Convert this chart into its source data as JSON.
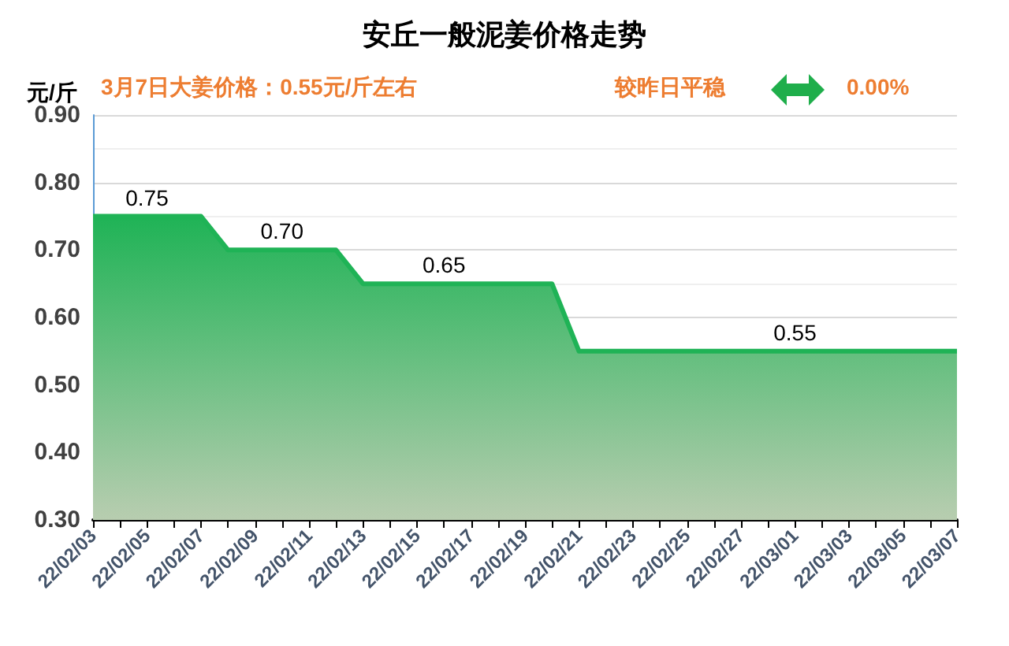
{
  "chart_data": {
    "type": "area",
    "title": "安丘一般泥姜价格走势",
    "ylabel": "元/斤",
    "annotations": [
      "3月7日大姜价格：0.55元/斤左右",
      "较昨日平稳",
      "0.00%"
    ],
    "categories": [
      "22/02/03",
      null,
      "22/02/05",
      null,
      "22/02/07",
      null,
      "22/02/09",
      null,
      "22/02/11",
      null,
      "22/02/13",
      null,
      "22/02/15",
      null,
      "22/02/17",
      null,
      "22/02/19",
      null,
      "22/02/21",
      null,
      "22/02/23",
      null,
      "22/02/25",
      null,
      "22/02/27",
      null,
      "22/03/01",
      null,
      "22/03/03",
      null,
      "22/03/05",
      null,
      "22/03/07"
    ],
    "series": [
      {
        "color": "#1fb356",
        "values": [
          0.75,
          0.75,
          0.75,
          0.75,
          0.75,
          0.7,
          0.7,
          0.7,
          0.7,
          0.7,
          0.65,
          0.65,
          0.65,
          0.65,
          0.65,
          0.65,
          0.65,
          0.65,
          0.55,
          0.55,
          0.55,
          0.55,
          0.55,
          0.55,
          0.55,
          0.55,
          0.55,
          0.55,
          0.55,
          0.55,
          0.55,
          0.55,
          0.55
        ],
        "value_labels": [
          null,
          null,
          "0.75",
          null,
          null,
          null,
          null,
          "0.70",
          null,
          null,
          null,
          null,
          null,
          "0.65",
          null,
          null,
          null,
          null,
          null,
          null,
          null,
          null,
          null,
          null,
          null,
          null,
          "0.55",
          null,
          null,
          null,
          null,
          null,
          null
        ]
      }
    ],
    "ylim": [
      0.3,
      0.9
    ],
    "yticks": [
      {
        "value": 0.3,
        "label": "0.30"
      },
      {
        "value": 0.4,
        "label": "0.40"
      },
      {
        "value": 0.5,
        "label": "0.50"
      },
      {
        "value": 0.6,
        "label": "0.60"
      },
      {
        "value": 0.7,
        "label": "0.70"
      },
      {
        "value": 0.8,
        "label": "0.80"
      },
      {
        "value": 0.9,
        "label": "0.90"
      }
    ],
    "grid": "y",
    "marker": "none"
  }
}
